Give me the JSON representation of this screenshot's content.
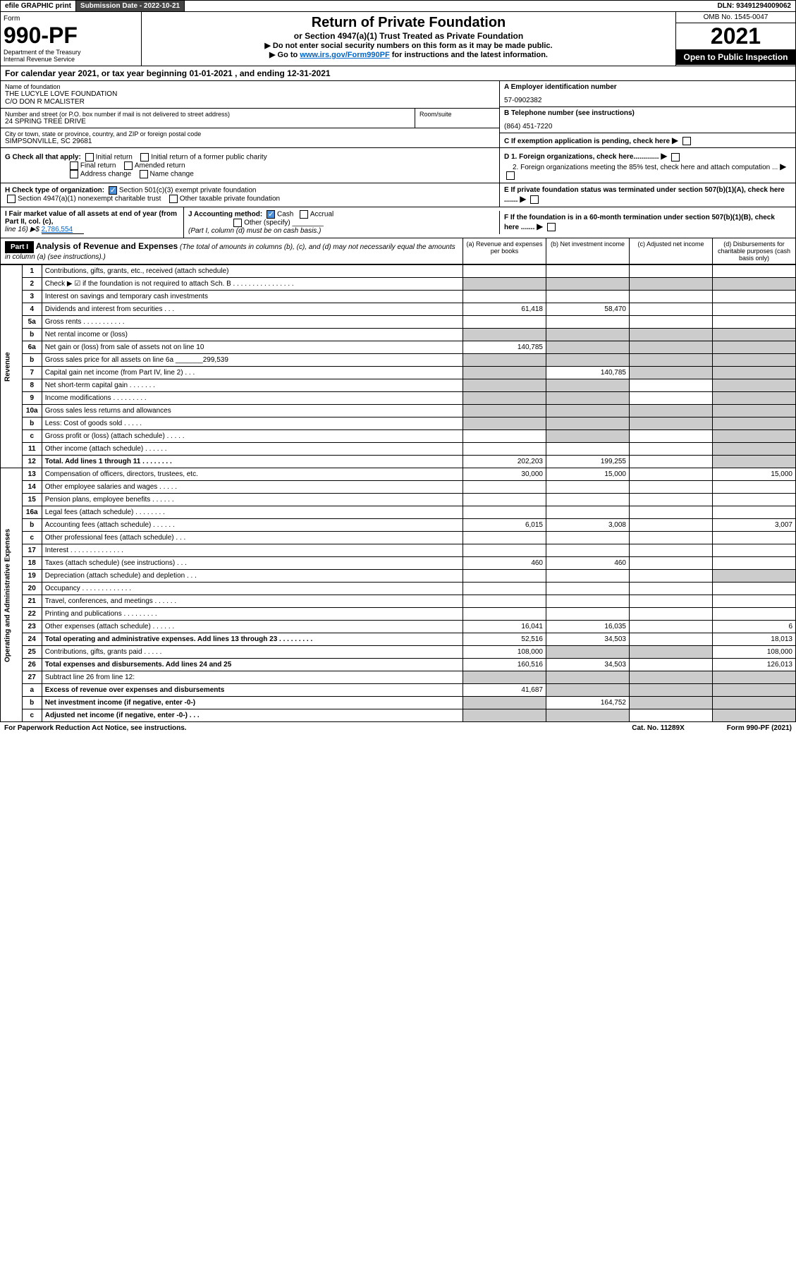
{
  "top": {
    "efile": "efile GRAPHIC print",
    "subdate_lbl": "Submission Date - 2022-10-21",
    "dln": "DLN: 93491294009062"
  },
  "header": {
    "form_lbl": "Form",
    "form_no": "990-PF",
    "dept": "Department of the Treasury",
    "irs": "Internal Revenue Service",
    "title": "Return of Private Foundation",
    "subtitle": "or Section 4947(a)(1) Trust Treated as Private Foundation",
    "note1": "▶ Do not enter social security numbers on this form as it may be made public.",
    "note2_pre": "▶ Go to ",
    "note2_link": "www.irs.gov/Form990PF",
    "note2_post": " for instructions and the latest information.",
    "omb": "OMB No. 1545-0047",
    "year": "2021",
    "open": "Open to Public Inspection"
  },
  "calyear": "For calendar year 2021, or tax year beginning 01-01-2021                      , and ending 12-31-2021",
  "id": {
    "name_lbl": "Name of foundation",
    "name1": "THE LUCYLE LOVE FOUNDATION",
    "name2": "C/O DON R MCALISTER",
    "addr_lbl": "Number and street (or P.O. box number if mail is not delivered to street address)",
    "addr": "24 SPRING TREE DRIVE",
    "room_lbl": "Room/suite",
    "city_lbl": "City or town, state or province, country, and ZIP or foreign postal code",
    "city": "SIMPSONVILLE, SC  29681",
    "a_lbl": "A Employer identification number",
    "a_val": "57-0902382",
    "b_lbl": "B Telephone number (see instructions)",
    "b_val": "(864) 451-7220",
    "c_lbl": "C If exemption application is pending, check here",
    "d1_lbl": "D 1. Foreign organizations, check here.............",
    "d2_lbl": "2. Foreign organizations meeting the 85% test, check here and attach computation ...",
    "e_lbl": "E  If private foundation status was terminated under section 507(b)(1)(A), check here .......",
    "f_lbl": "F  If the foundation is in a 60-month termination under section 507(b)(1)(B), check here .......",
    "g_lbl": "G Check all that apply:",
    "g_opts": [
      "Initial return",
      "Initial return of a former public charity",
      "Final return",
      "Amended return",
      "Address change",
      "Name change"
    ],
    "h_lbl": "H Check type of organization:",
    "h1": "Section 501(c)(3) exempt private foundation",
    "h2": "Section 4947(a)(1) nonexempt charitable trust",
    "h3": "Other taxable private foundation",
    "i_lbl": "I Fair market value of all assets at end of year (from Part II, col. (c),",
    "i_line": "line 16) ▶$ ",
    "i_val": "2,786,554",
    "j_lbl": "J Accounting method:",
    "j_cash": "Cash",
    "j_accrual": "Accrual",
    "j_other": "Other (specify)",
    "j_note": "(Part I, column (d) must be on cash basis.)"
  },
  "part1": {
    "label": "Part I",
    "title": "Analysis of Revenue and Expenses",
    "title_note": " (The total of amounts in columns (b), (c), and (d) may not necessarily equal the amounts in column (a) (see instructions).)",
    "col_a": "(a)  Revenue and expenses per books",
    "col_b": "(b)  Net investment income",
    "col_c": "(c)  Adjusted net income",
    "col_d": "(d)  Disbursements for charitable purposes (cash basis only)"
  },
  "sections": {
    "revenue": "Revenue",
    "expenses": "Operating and Administrative Expenses"
  },
  "rows": [
    {
      "n": "1",
      "d": "Contributions, gifts, grants, etc., received (attach schedule)",
      "a": "",
      "b": "",
      "c": "",
      "D": ""
    },
    {
      "n": "2",
      "d": "Check ▶ ☑ if the foundation is not required to attach Sch. B   .  .  .  .  .  .  .  .  .  .  .  .  .  .  .  .",
      "a": "g",
      "b": "g",
      "c": "g",
      "D": "g"
    },
    {
      "n": "3",
      "d": "Interest on savings and temporary cash investments",
      "a": "",
      "b": "",
      "c": "",
      "D": ""
    },
    {
      "n": "4",
      "d": "Dividends and interest from securities  .  .  .",
      "a": "61,418",
      "b": "58,470",
      "c": "",
      "D": ""
    },
    {
      "n": "5a",
      "d": "Gross rents  .  .  .  .  .  .  .  .  .  .  .",
      "a": "",
      "b": "",
      "c": "",
      "D": ""
    },
    {
      "n": "b",
      "d": "Net rental income or (loss)  ",
      "a": "g",
      "b": "g",
      "c": "g",
      "D": "g"
    },
    {
      "n": "6a",
      "d": "Net gain or (loss) from sale of assets not on line 10",
      "a": "140,785",
      "b": "g",
      "c": "g",
      "D": "g"
    },
    {
      "n": "b",
      "d": "Gross sales price for all assets on line 6a _______299,539",
      "a": "g",
      "b": "g",
      "c": "g",
      "D": "g"
    },
    {
      "n": "7",
      "d": "Capital gain net income (from Part IV, line 2)  .  .  .",
      "a": "g",
      "b": "140,785",
      "c": "g",
      "D": "g"
    },
    {
      "n": "8",
      "d": "Net short-term capital gain  .  .  .  .  .  .  .",
      "a": "g",
      "b": "g",
      "c": "",
      "D": "g"
    },
    {
      "n": "9",
      "d": "Income modifications  .  .  .  .  .  .  .  .  .",
      "a": "g",
      "b": "g",
      "c": "",
      "D": "g"
    },
    {
      "n": "10a",
      "d": "Gross sales less returns and allowances",
      "a": "g",
      "b": "g",
      "c": "g",
      "D": "g"
    },
    {
      "n": "b",
      "d": "Less: Cost of goods sold  .  .  .  .  .",
      "a": "g",
      "b": "g",
      "c": "g",
      "D": "g"
    },
    {
      "n": "c",
      "d": "Gross profit or (loss) (attach schedule)  .  .  .  .  .",
      "a": "",
      "b": "g",
      "c": "",
      "D": "g"
    },
    {
      "n": "11",
      "d": "Other income (attach schedule)  .  .  .  .  .  .",
      "a": "",
      "b": "",
      "c": "",
      "D": "g"
    },
    {
      "n": "12",
      "d": "Total. Add lines 1 through 11  .  .  .  .  .  .  .  .",
      "a": "202,203",
      "b": "199,255",
      "c": "",
      "D": "g",
      "bold": true
    },
    {
      "n": "13",
      "d": "Compensation of officers, directors, trustees, etc.",
      "a": "30,000",
      "b": "15,000",
      "c": "",
      "D": "15,000"
    },
    {
      "n": "14",
      "d": "Other employee salaries and wages  .  .  .  .  .",
      "a": "",
      "b": "",
      "c": "",
      "D": ""
    },
    {
      "n": "15",
      "d": "Pension plans, employee benefits  .  .  .  .  .  .",
      "a": "",
      "b": "",
      "c": "",
      "D": ""
    },
    {
      "n": "16a",
      "d": "Legal fees (attach schedule)  .  .  .  .  .  .  .  .",
      "a": "",
      "b": "",
      "c": "",
      "D": ""
    },
    {
      "n": "b",
      "d": "Accounting fees (attach schedule)  .  .  .  .  .  .",
      "a": "6,015",
      "b": "3,008",
      "c": "",
      "D": "3,007"
    },
    {
      "n": "c",
      "d": "Other professional fees (attach schedule)  .  .  .",
      "a": "",
      "b": "",
      "c": "",
      "D": ""
    },
    {
      "n": "17",
      "d": "Interest  .  .  .  .  .  .  .  .  .  .  .  .  .  .",
      "a": "",
      "b": "",
      "c": "",
      "D": ""
    },
    {
      "n": "18",
      "d": "Taxes (attach schedule) (see instructions)  .  .  .",
      "a": "460",
      "b": "460",
      "c": "",
      "D": ""
    },
    {
      "n": "19",
      "d": "Depreciation (attach schedule) and depletion  .  .  .",
      "a": "",
      "b": "",
      "c": "",
      "D": "g"
    },
    {
      "n": "20",
      "d": "Occupancy  .  .  .  .  .  .  .  .  .  .  .  .  .",
      "a": "",
      "b": "",
      "c": "",
      "D": ""
    },
    {
      "n": "21",
      "d": "Travel, conferences, and meetings  .  .  .  .  .  .",
      "a": "",
      "b": "",
      "c": "",
      "D": ""
    },
    {
      "n": "22",
      "d": "Printing and publications  .  .  .  .  .  .  .  .  .",
      "a": "",
      "b": "",
      "c": "",
      "D": ""
    },
    {
      "n": "23",
      "d": "Other expenses (attach schedule)  .  .  .  .  .  .",
      "a": "16,041",
      "b": "16,035",
      "c": "",
      "D": "6"
    },
    {
      "n": "24",
      "d": "Total operating and administrative expenses. Add lines 13 through 23  .  .  .  .  .  .  .  .  .",
      "a": "52,516",
      "b": "34,503",
      "c": "",
      "D": "18,013",
      "bold": true
    },
    {
      "n": "25",
      "d": "Contributions, gifts, grants paid  .  .  .  .  .",
      "a": "108,000",
      "b": "g",
      "c": "g",
      "D": "108,000"
    },
    {
      "n": "26",
      "d": "Total expenses and disbursements. Add lines 24 and 25",
      "a": "160,516",
      "b": "34,503",
      "c": "",
      "D": "126,013",
      "bold": true
    },
    {
      "n": "27",
      "d": "Subtract line 26 from line 12:",
      "a": "g",
      "b": "g",
      "c": "g",
      "D": "g"
    },
    {
      "n": "a",
      "d": "Excess of revenue over expenses and disbursements",
      "a": "41,687",
      "b": "g",
      "c": "g",
      "D": "g",
      "bold": true
    },
    {
      "n": "b",
      "d": "Net investment income (if negative, enter -0-)",
      "a": "g",
      "b": "164,752",
      "c": "g",
      "D": "g",
      "bold": true
    },
    {
      "n": "c",
      "d": "Adjusted net income (if negative, enter -0-)  .  .  .",
      "a": "g",
      "b": "g",
      "c": "",
      "D": "g",
      "bold": true
    }
  ],
  "footer": {
    "left": "For Paperwork Reduction Act Notice, see instructions.",
    "mid": "Cat. No. 11289X",
    "right": "Form 990-PF (2021)"
  }
}
